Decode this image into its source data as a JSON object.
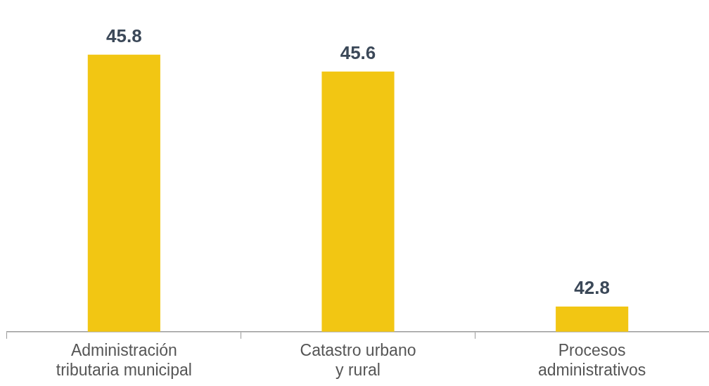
{
  "chart_data": {
    "type": "bar",
    "categories": [
      "Administración\ntributaria municipal",
      "Catastro urbano\ny rural",
      "Procesos\nadministrativos"
    ],
    "values": [
      45.8,
      45.6,
      42.8
    ],
    "color": "#f2c613",
    "data_labels": true,
    "grid": false,
    "legend": false,
    "tick_labels": "x"
  }
}
